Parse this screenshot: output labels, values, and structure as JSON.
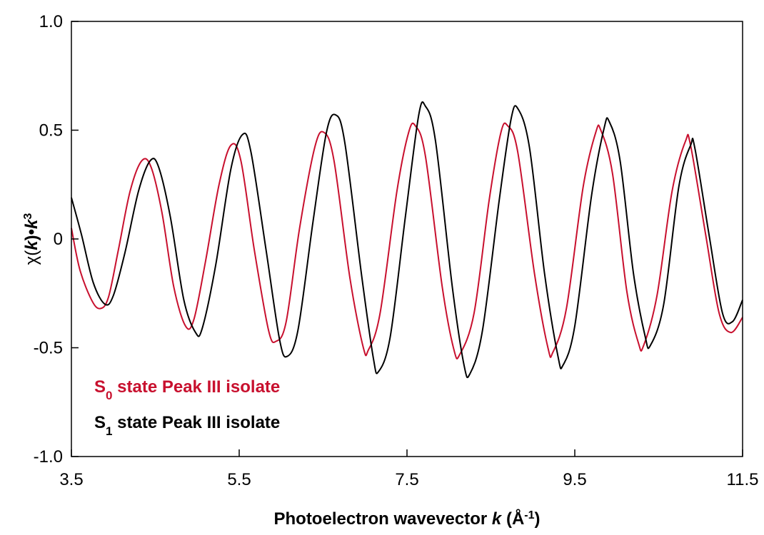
{
  "chart_data": {
    "type": "line",
    "title": "",
    "xlabel": {
      "prefix": "Photoelectron wavevector ",
      "var": "k",
      "unit_open": " (Å",
      "unit_sup": "-1",
      "unit_close": ")"
    },
    "ylabel": {
      "chi": "χ(",
      "k1": "k",
      "mid": ")•",
      "k2": "k",
      "sup": "3"
    },
    "xlim": [
      3.5,
      11.5
    ],
    "ylim": [
      -1.0,
      1.0
    ],
    "x_ticks": [
      3.5,
      5.5,
      7.5,
      9.5,
      11.5
    ],
    "x_tick_labels": [
      "3.5",
      "5.5",
      "7.5",
      "9.5",
      "11.5"
    ],
    "y_ticks": [
      -1.0,
      -0.5,
      0,
      0.5,
      1.0
    ],
    "y_tick_labels": [
      "-1.0",
      "-0.5",
      "0",
      "0.5",
      "1.0"
    ],
    "grid": false,
    "legend_position": "bottom-left",
    "series": [
      {
        "name": "S0 state Peak III isolate",
        "legend": {
          "base": "S",
          "sub": "0",
          "rest": " state Peak III isolate"
        },
        "color": "#c8102e",
        "points": [
          [
            3.5,
            0.05
          ],
          [
            3.6,
            -0.14
          ],
          [
            3.74,
            -0.28
          ],
          [
            3.84,
            -0.32
          ],
          [
            3.94,
            -0.27
          ],
          [
            4.06,
            -0.05
          ],
          [
            4.2,
            0.22
          ],
          [
            4.34,
            0.36
          ],
          [
            4.45,
            0.33
          ],
          [
            4.58,
            0.12
          ],
          [
            4.72,
            -0.22
          ],
          [
            4.86,
            -0.4
          ],
          [
            4.96,
            -0.37
          ],
          [
            5.1,
            -0.1
          ],
          [
            5.26,
            0.25
          ],
          [
            5.4,
            0.43
          ],
          [
            5.52,
            0.36
          ],
          [
            5.68,
            -0.05
          ],
          [
            5.85,
            -0.42
          ],
          [
            5.94,
            -0.47
          ],
          [
            6.06,
            -0.38
          ],
          [
            6.22,
            0.05
          ],
          [
            6.4,
            0.42
          ],
          [
            6.51,
            0.49
          ],
          [
            6.63,
            0.36
          ],
          [
            6.82,
            -0.18
          ],
          [
            6.98,
            -0.5
          ],
          [
            7.04,
            -0.51
          ],
          [
            7.18,
            -0.34
          ],
          [
            7.38,
            0.22
          ],
          [
            7.52,
            0.49
          ],
          [
            7.6,
            0.52
          ],
          [
            7.72,
            0.38
          ],
          [
            7.92,
            -0.22
          ],
          [
            8.06,
            -0.51
          ],
          [
            8.13,
            -0.53
          ],
          [
            8.3,
            -0.34
          ],
          [
            8.48,
            0.18
          ],
          [
            8.62,
            0.49
          ],
          [
            8.7,
            0.52
          ],
          [
            8.82,
            0.4
          ],
          [
            9.02,
            -0.16
          ],
          [
            9.18,
            -0.5
          ],
          [
            9.24,
            -0.52
          ],
          [
            9.4,
            -0.32
          ],
          [
            9.6,
            0.24
          ],
          [
            9.75,
            0.49
          ],
          [
            9.81,
            0.5
          ],
          [
            9.95,
            0.3
          ],
          [
            10.12,
            -0.24
          ],
          [
            10.26,
            -0.48
          ],
          [
            10.32,
            -0.49
          ],
          [
            10.48,
            -0.26
          ],
          [
            10.66,
            0.22
          ],
          [
            10.82,
            0.45
          ],
          [
            10.88,
            0.43
          ],
          [
            11.06,
            0.02
          ],
          [
            11.22,
            -0.34
          ],
          [
            11.36,
            -0.43
          ],
          [
            11.5,
            -0.36
          ]
        ]
      },
      {
        "name": "S1 state Peak III isolate",
        "legend": {
          "base": "S",
          "sub": "1",
          "rest": " state Peak III isolate"
        },
        "color": "#000000",
        "points": [
          [
            3.5,
            0.19
          ],
          [
            3.62,
            0.02
          ],
          [
            3.76,
            -0.2
          ],
          [
            3.9,
            -0.3
          ],
          [
            4.0,
            -0.26
          ],
          [
            4.14,
            -0.06
          ],
          [
            4.3,
            0.22
          ],
          [
            4.44,
            0.36
          ],
          [
            4.54,
            0.33
          ],
          [
            4.68,
            0.1
          ],
          [
            4.84,
            -0.28
          ],
          [
            4.98,
            -0.43
          ],
          [
            5.06,
            -0.41
          ],
          [
            5.22,
            -0.12
          ],
          [
            5.4,
            0.32
          ],
          [
            5.54,
            0.48
          ],
          [
            5.64,
            0.4
          ],
          [
            5.82,
            -0.05
          ],
          [
            5.98,
            -0.46
          ],
          [
            6.07,
            -0.54
          ],
          [
            6.2,
            -0.42
          ],
          [
            6.38,
            0.08
          ],
          [
            6.54,
            0.49
          ],
          [
            6.65,
            0.57
          ],
          [
            6.76,
            0.44
          ],
          [
            6.96,
            -0.17
          ],
          [
            7.1,
            -0.55
          ],
          [
            7.16,
            -0.61
          ],
          [
            7.3,
            -0.45
          ],
          [
            7.48,
            0.1
          ],
          [
            7.64,
            0.57
          ],
          [
            7.72,
            0.61
          ],
          [
            7.84,
            0.45
          ],
          [
            8.04,
            -0.22
          ],
          [
            8.18,
            -0.58
          ],
          [
            8.25,
            -0.62
          ],
          [
            8.4,
            -0.42
          ],
          [
            8.6,
            0.18
          ],
          [
            8.74,
            0.55
          ],
          [
            8.82,
            0.6
          ],
          [
            8.96,
            0.42
          ],
          [
            9.14,
            -0.16
          ],
          [
            9.3,
            -0.54
          ],
          [
            9.36,
            -0.58
          ],
          [
            9.5,
            -0.4
          ],
          [
            9.7,
            0.2
          ],
          [
            9.85,
            0.51
          ],
          [
            9.91,
            0.54
          ],
          [
            10.04,
            0.36
          ],
          [
            10.2,
            -0.16
          ],
          [
            10.34,
            -0.45
          ],
          [
            10.4,
            -0.49
          ],
          [
            10.56,
            -0.3
          ],
          [
            10.74,
            0.24
          ],
          [
            10.88,
            0.43
          ],
          [
            10.93,
            0.42
          ],
          [
            11.1,
            0.02
          ],
          [
            11.26,
            -0.34
          ],
          [
            11.38,
            -0.38
          ],
          [
            11.5,
            -0.28
          ]
        ]
      }
    ]
  }
}
